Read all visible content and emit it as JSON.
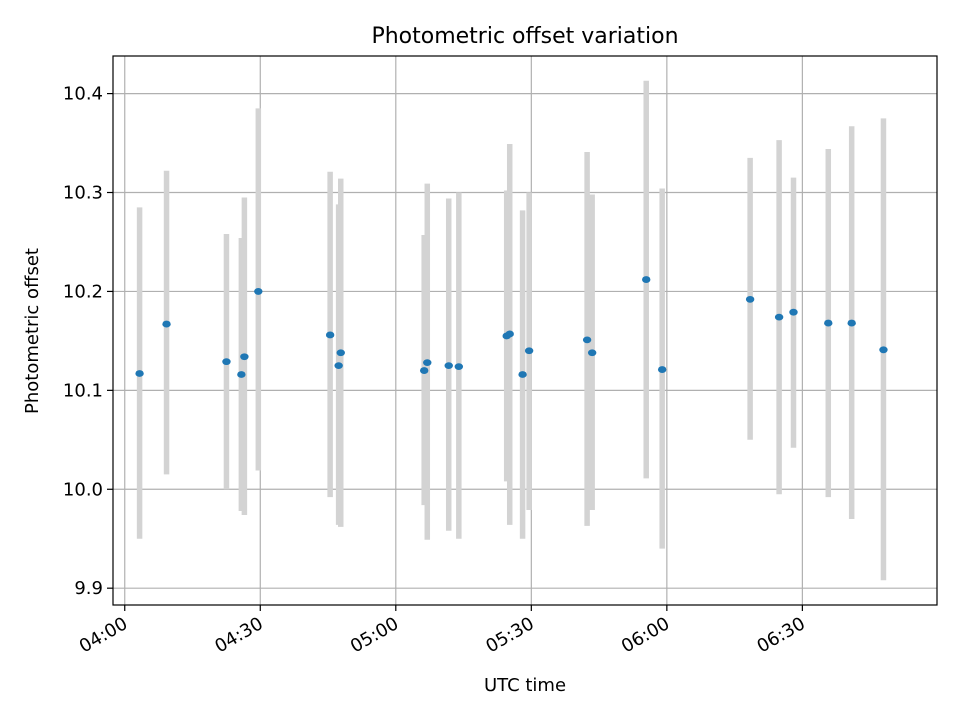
{
  "chart_data": {
    "type": "scatter",
    "title": "Photometric offset variation",
    "xlabel": "UTC time",
    "ylabel": "Photometric offset",
    "x_unit": "UTC time (HH:MM)",
    "xlim": [
      "03:57:24",
      "06:59:48"
    ],
    "ylim": [
      9.883,
      10.438
    ],
    "xticks": [
      "04:00",
      "04:30",
      "05:00",
      "05:30",
      "06:00",
      "06:30"
    ],
    "yticks": [
      "9.9",
      "10.0",
      "10.1",
      "10.2",
      "10.3",
      "10.4"
    ],
    "grid": true,
    "marker_color": "#1f77b4",
    "errorbar_color": "#d3d3d3",
    "series": [
      {
        "points": [
          {
            "x": "04:03:17",
            "y": 10.117,
            "ylo": 9.95,
            "yhi": 10.285
          },
          {
            "x": "04:09:15",
            "y": 10.167,
            "ylo": 10.015,
            "yhi": 10.322
          },
          {
            "x": "04:22:31",
            "y": 10.129,
            "ylo": 10.0,
            "yhi": 10.258
          },
          {
            "x": "04:25:49",
            "y": 10.116,
            "ylo": 9.978,
            "yhi": 10.254
          },
          {
            "x": "04:26:29",
            "y": 10.134,
            "ylo": 9.974,
            "yhi": 10.295
          },
          {
            "x": "04:29:34",
            "y": 10.2,
            "ylo": 10.019,
            "yhi": 10.385
          },
          {
            "x": "04:45:28",
            "y": 10.156,
            "ylo": 9.992,
            "yhi": 10.321
          },
          {
            "x": "04:47:21",
            "y": 10.125,
            "ylo": 9.964,
            "yhi": 10.288
          },
          {
            "x": "04:47:49",
            "y": 10.138,
            "ylo": 9.962,
            "yhi": 10.314
          },
          {
            "x": "05:06:17",
            "y": 10.12,
            "ylo": 9.984,
            "yhi": 10.257
          },
          {
            "x": "05:06:58",
            "y": 10.128,
            "ylo": 9.949,
            "yhi": 10.309
          },
          {
            "x": "05:11:43",
            "y": 10.125,
            "ylo": 9.958,
            "yhi": 10.294
          },
          {
            "x": "05:13:57",
            "y": 10.124,
            "ylo": 9.95,
            "yhi": 10.3
          },
          {
            "x": "05:24:33",
            "y": 10.155,
            "ylo": 10.008,
            "yhi": 10.302
          },
          {
            "x": "05:25:13",
            "y": 10.157,
            "ylo": 9.964,
            "yhi": 10.349
          },
          {
            "x": "05:28:04",
            "y": 10.116,
            "ylo": 9.95,
            "yhi": 10.282
          },
          {
            "x": "05:29:31",
            "y": 10.14,
            "ylo": 9.979,
            "yhi": 10.3
          },
          {
            "x": "05:42:21",
            "y": 10.151,
            "ylo": 9.963,
            "yhi": 10.341
          },
          {
            "x": "05:43:28",
            "y": 10.138,
            "ylo": 9.979,
            "yhi": 10.298
          },
          {
            "x": "05:55:26",
            "y": 10.212,
            "ylo": 10.011,
            "yhi": 10.413
          },
          {
            "x": "05:58:58",
            "y": 10.121,
            "ylo": 9.94,
            "yhi": 10.304
          },
          {
            "x": "06:18:26",
            "y": 10.192,
            "ylo": 10.05,
            "yhi": 10.335
          },
          {
            "x": "06:24:51",
            "y": 10.174,
            "ylo": 9.995,
            "yhi": 10.353
          },
          {
            "x": "06:28:02",
            "y": 10.179,
            "ylo": 10.042,
            "yhi": 10.315
          },
          {
            "x": "06:35:44",
            "y": 10.168,
            "ylo": 9.992,
            "yhi": 10.344
          },
          {
            "x": "06:40:55",
            "y": 10.168,
            "ylo": 9.97,
            "yhi": 10.367
          },
          {
            "x": "06:47:57",
            "y": 10.141,
            "ylo": 9.908,
            "yhi": 10.375
          }
        ]
      }
    ]
  }
}
